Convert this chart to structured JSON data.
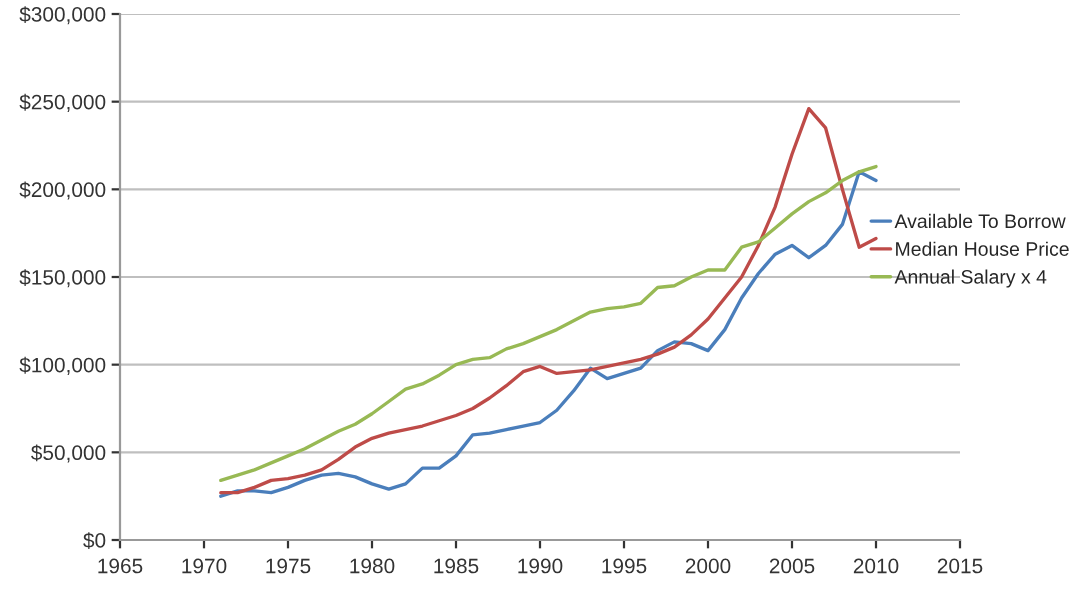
{
  "chart_data": {
    "type": "line",
    "x": [
      1971,
      1972,
      1973,
      1974,
      1975,
      1976,
      1977,
      1978,
      1979,
      1980,
      1981,
      1982,
      1983,
      1984,
      1985,
      1986,
      1987,
      1988,
      1989,
      1990,
      1991,
      1992,
      1993,
      1994,
      1995,
      1996,
      1997,
      1998,
      1999,
      2000,
      2001,
      2002,
      2003,
      2004,
      2005,
      2006,
      2007,
      2008,
      2009,
      2010
    ],
    "series": [
      {
        "name": "Available To Borrow",
        "color": "#4a7ebb",
        "values": [
          25000,
          28000,
          28000,
          27000,
          30000,
          34000,
          37000,
          38000,
          36000,
          32000,
          29000,
          32000,
          41000,
          41000,
          48000,
          60000,
          61000,
          63000,
          65000,
          67000,
          74000,
          85000,
          98000,
          92000,
          95000,
          98000,
          108000,
          113000,
          112000,
          108000,
          120000,
          138000,
          152000,
          163000,
          168000,
          161000,
          168000,
          180000,
          210000,
          205000
        ]
      },
      {
        "name": "Median House Price",
        "color": "#be4b48",
        "values": [
          27000,
          27000,
          30000,
          34000,
          35000,
          37000,
          40000,
          46000,
          53000,
          58000,
          61000,
          63000,
          65000,
          68000,
          71000,
          75000,
          81000,
          88000,
          96000,
          99000,
          95000,
          96000,
          97000,
          99000,
          101000,
          103000,
          106000,
          110000,
          117000,
          126000,
          138000,
          150000,
          168000,
          190000,
          220000,
          246000,
          235000,
          200000,
          167000,
          172000
        ]
      },
      {
        "name": "Annual Salary x 4",
        "color": "#98b954",
        "values": [
          34000,
          37000,
          40000,
          44000,
          48000,
          52000,
          57000,
          62000,
          66000,
          72000,
          79000,
          86000,
          89000,
          94000,
          100000,
          103000,
          104000,
          109000,
          112000,
          116000,
          120000,
          125000,
          130000,
          132000,
          133000,
          135000,
          144000,
          145000,
          150000,
          154000,
          154000,
          167000,
          170000,
          178000,
          186000,
          193000,
          198000,
          205000,
          210000,
          213000
        ]
      }
    ],
    "xlim": [
      1965,
      2015
    ],
    "xticks": [
      1965,
      1970,
      1975,
      1980,
      1985,
      1990,
      1995,
      2000,
      2005,
      2010,
      2015
    ],
    "ylim": [
      0,
      300000
    ],
    "yticks": [
      {
        "value": 0,
        "label": "$0"
      },
      {
        "value": 50000,
        "label": "$50,000"
      },
      {
        "value": 100000,
        "label": "$100,000"
      },
      {
        "value": 150000,
        "label": "$150,000"
      },
      {
        "value": 200000,
        "label": "$200,000"
      },
      {
        "value": 250000,
        "label": "$250,000"
      },
      {
        "value": 300000,
        "label": "$300,000"
      }
    ],
    "grid": "y",
    "legend": "right",
    "marker": "none",
    "line_style": "solid"
  }
}
